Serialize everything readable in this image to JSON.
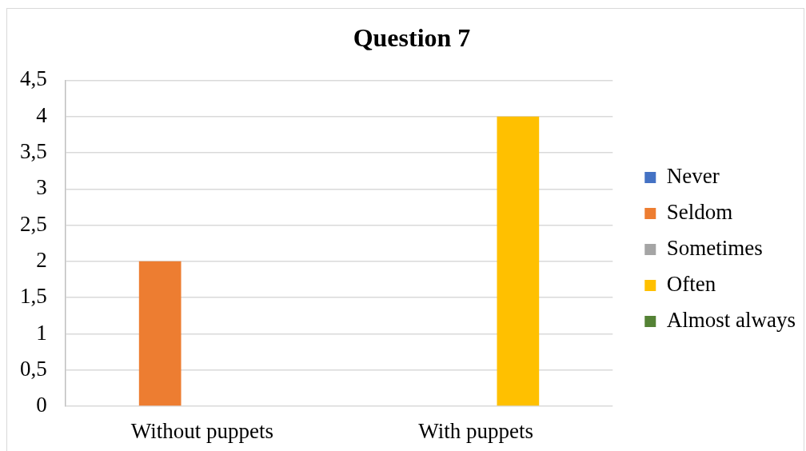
{
  "chart_data": {
    "type": "bar",
    "title": "Question 7",
    "categories": [
      "Without puppets",
      "With puppets"
    ],
    "series": [
      {
        "name": "Never",
        "color": "#4472c4",
        "values": [
          0,
          0
        ]
      },
      {
        "name": "Seldom",
        "color": "#ed7d31",
        "values": [
          2,
          0
        ]
      },
      {
        "name": "Sometimes",
        "color": "#a5a5a5",
        "values": [
          0,
          0
        ]
      },
      {
        "name": "Often",
        "color": "#ffc000",
        "values": [
          0,
          4
        ]
      },
      {
        "name": "Almost always",
        "color": "#548235",
        "values": [
          0,
          0
        ]
      }
    ],
    "ylim": [
      0,
      4.5
    ],
    "yticks": [
      0,
      {
        "value": 0.5,
        "label": "0,5"
      },
      1,
      {
        "value": 1.5,
        "label": "1,5"
      },
      2,
      {
        "value": 2.5,
        "label": "2,5"
      },
      3,
      {
        "value": 3.5,
        "label": "3,5"
      },
      4,
      {
        "value": 4.5,
        "label": "4,5"
      }
    ],
    "grid": "y",
    "legend": "right"
  }
}
